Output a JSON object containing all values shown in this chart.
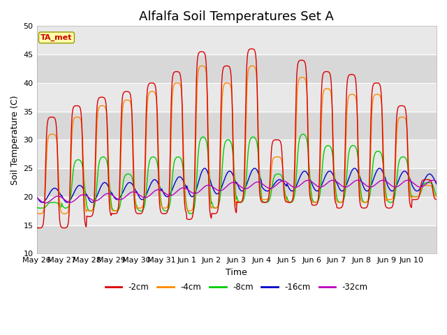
{
  "title": "Alfalfa Soil Temperatures Set A",
  "xlabel": "Time",
  "ylabel": "Soil Temperature (C)",
  "ylim": [
    10,
    50
  ],
  "background_color": "#e0e0e0",
  "legend_labels": [
    "-2cm",
    "-4cm",
    "-8cm",
    "-16cm",
    "-32cm"
  ],
  "legend_colors": [
    "#dd0000",
    "#ff8800",
    "#00cc00",
    "#0000cc",
    "#bb00bb"
  ],
  "annotation_text": "TA_met",
  "annotation_color": "#cc0000",
  "annotation_bg": "#ffffaa",
  "x_tick_labels": [
    "May 26",
    "May 27",
    "May 28",
    "May 29",
    "May 30",
    "May 31",
    "Jun 1",
    "Jun 2",
    "Jun 3",
    "Jun 4",
    "Jun 5",
    "Jun 6",
    "Jun 7",
    "Jun 8",
    "Jun 9",
    "Jun 10"
  ],
  "title_fontsize": 13,
  "label_fontsize": 9,
  "tick_fontsize": 8,
  "peaks_2cm": [
    34,
    36,
    37.5,
    38.5,
    40,
    42,
    45.5,
    43,
    46,
    30,
    44,
    42,
    41.5,
    40,
    36,
    23
  ],
  "troughs_2cm": [
    14.5,
    14.5,
    16.5,
    17,
    17,
    17,
    16,
    17,
    19,
    19,
    19,
    18.5,
    18,
    18,
    18,
    19.5
  ],
  "peaks_4cm": [
    31,
    34,
    36,
    37,
    38.5,
    40,
    43,
    40,
    43,
    27,
    41,
    39,
    38,
    38,
    34,
    22
  ],
  "troughs_4cm": [
    17,
    17,
    17.5,
    17.5,
    18,
    18,
    17.5,
    18,
    19,
    19.5,
    19,
    19,
    19,
    19,
    19.5,
    20
  ],
  "peaks_8cm": [
    19,
    26.5,
    27,
    24,
    27,
    27,
    30.5,
    30,
    30.5,
    24,
    31,
    29,
    29,
    28,
    27,
    22.5
  ],
  "troughs_8cm": [
    18,
    18,
    17.5,
    17.5,
    17.5,
    17.5,
    17,
    18,
    19,
    19,
    19,
    19,
    19,
    19,
    19,
    20
  ],
  "peaks_16cm": [
    21.5,
    22,
    22.5,
    22.5,
    23,
    23.5,
    25,
    24.5,
    25,
    23,
    24.5,
    24.5,
    25,
    25,
    24.5,
    24
  ],
  "troughs_16cm": [
    19,
    19,
    19,
    19.5,
    19.5,
    20,
    20,
    20.5,
    21,
    21,
    21,
    21,
    21,
    21,
    21,
    21
  ],
  "base_32cm": [
    19.5,
    19.5,
    19.8,
    20,
    20.3,
    20.7,
    21,
    21.5,
    22,
    22,
    22.2,
    22.3,
    22.3,
    22.3,
    22.3,
    22.3
  ]
}
